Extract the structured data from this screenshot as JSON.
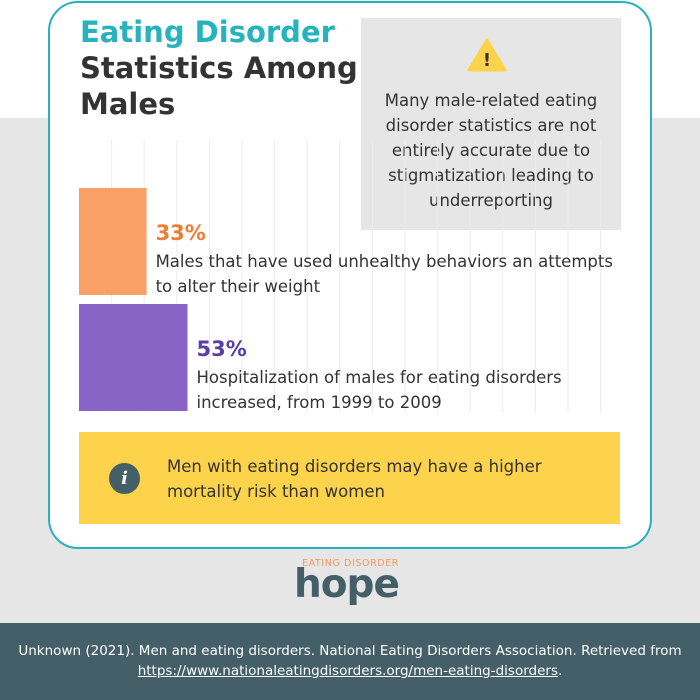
{
  "title": {
    "line1": "Eating Disorder",
    "line2": "Statistics Among Males"
  },
  "warning": {
    "icon": "warning-triangle-icon",
    "glyph": "!",
    "text": "Many male-related eating disorder statistics are not entirely accurate due to stigmatization leading to underreporting"
  },
  "chart_data": {
    "type": "bar",
    "orientation": "horizontal",
    "categories": [
      "Males that have used unhealthy behaviors an attempts to alter their weight",
      "Hospitalization of males for eating disorders increased, from 1999 to 2009"
    ],
    "values": [
      33,
      53
    ],
    "labels": [
      "33%",
      "53%"
    ],
    "colors": [
      "#f9a067",
      "#8964c7"
    ],
    "xlim": [
      0,
      100
    ],
    "grid": true
  },
  "info": {
    "icon": "info-icon",
    "glyph": "i",
    "text": "Men with eating disorders may have a higher mortality risk than women"
  },
  "logo": {
    "top_text": "EATING DISORDER",
    "word": "hope"
  },
  "footer": {
    "citation": "Unknown (2021). Men and eating disorders. National Eating Disorders Association. Retrieved from ",
    "link": "https://www.nationaleatingdisorders.org/men-eating-disorders",
    "end": "."
  },
  "colors": {
    "teal": "#26b3bd",
    "dark": "#455f68",
    "yellow": "#fdd34c",
    "grey": "#e6e6e6"
  }
}
